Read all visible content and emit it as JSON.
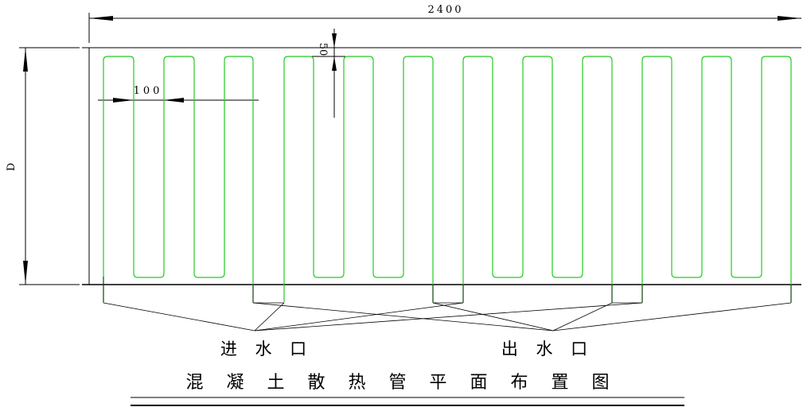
{
  "dimensions": {
    "total_width": "2400",
    "pipe_spacing": "100",
    "edge_offset": "50",
    "depth": "D"
  },
  "labels": {
    "inlet": "进 水 口",
    "outlet": "出 水 口"
  },
  "title": "混 凝 土 散 热 管 平 面 布 置 图",
  "colors": {
    "pipe": "#22cc22",
    "lines": "#000000"
  }
}
